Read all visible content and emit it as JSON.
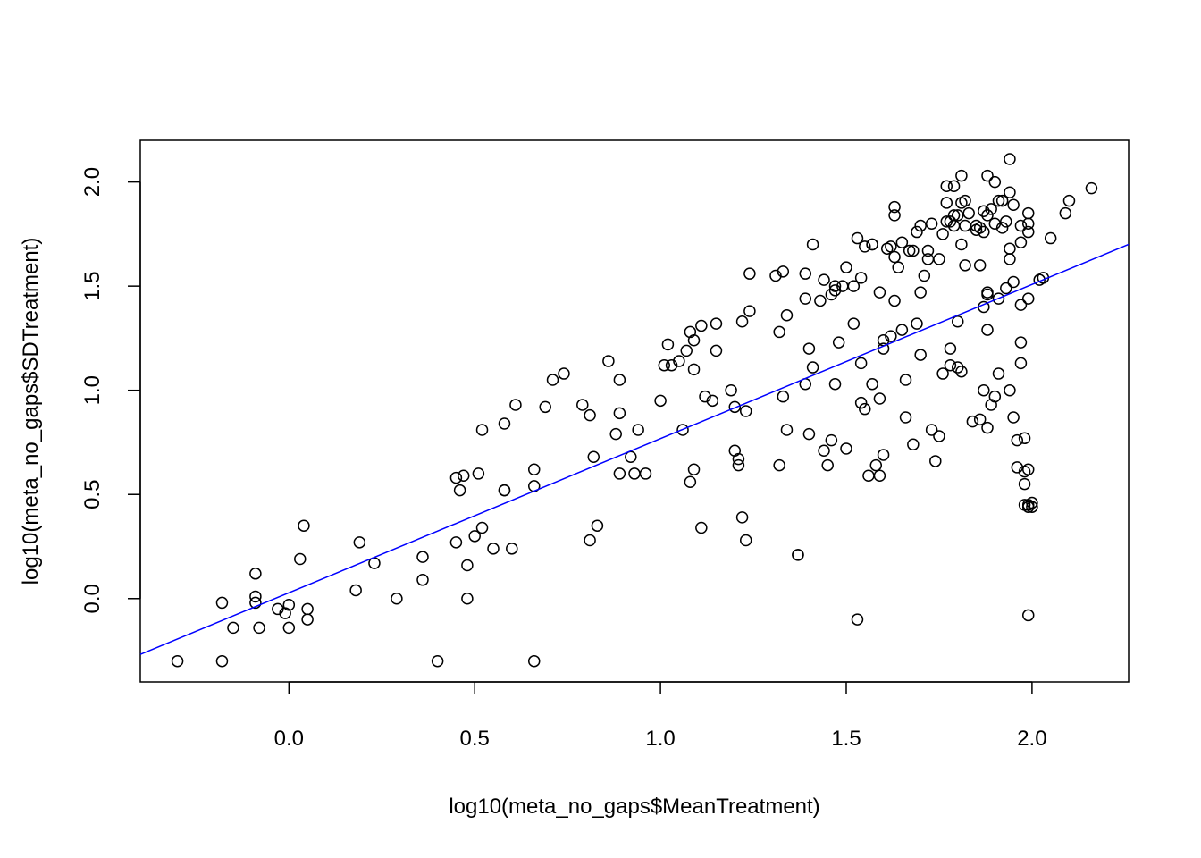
{
  "chart_data": {
    "type": "scatter",
    "title": "",
    "xlabel": "log10(meta_no_gaps$MeanTreatment)",
    "ylabel": "log10(meta_no_gaps$SDTreatment)",
    "xlim": [
      -0.4,
      2.26
    ],
    "ylim": [
      -0.4,
      2.2
    ],
    "xticks": [
      0.0,
      0.5,
      1.0,
      1.5,
      2.0
    ],
    "xtick_labels": [
      "0.0",
      "0.5",
      "1.0",
      "1.5",
      "2.0"
    ],
    "yticks": [
      0.0,
      0.5,
      1.0,
      1.5,
      2.0
    ],
    "ytick_labels": [
      "0.0",
      "0.5",
      "1.0",
      "1.5",
      "2.0"
    ],
    "grid": false,
    "legend": "none",
    "point_color": "#000000",
    "fit_line": {
      "color": "#0000ff",
      "intercept": 0.028,
      "slope": 0.74
    },
    "points": [
      [
        -0.3,
        -0.3
      ],
      [
        -0.18,
        -0.3
      ],
      [
        -0.18,
        -0.02
      ],
      [
        -0.15,
        -0.14
      ],
      [
        -0.09,
        0.12
      ],
      [
        -0.09,
        0.01
      ],
      [
        -0.09,
        -0.02
      ],
      [
        -0.08,
        -0.14
      ],
      [
        -0.03,
        -0.05
      ],
      [
        -0.01,
        -0.07
      ],
      [
        0.0,
        -0.03
      ],
      [
        0.0,
        -0.14
      ],
      [
        0.03,
        0.19
      ],
      [
        0.04,
        0.35
      ],
      [
        0.05,
        -0.05
      ],
      [
        0.05,
        -0.1
      ],
      [
        0.18,
        0.04
      ],
      [
        0.19,
        0.27
      ],
      [
        0.23,
        0.17
      ],
      [
        0.29,
        0.0
      ],
      [
        0.36,
        0.2
      ],
      [
        0.36,
        0.09
      ],
      [
        0.4,
        -0.3
      ],
      [
        0.45,
        0.27
      ],
      [
        0.45,
        0.58
      ],
      [
        0.46,
        0.52
      ],
      [
        0.47,
        0.59
      ],
      [
        0.48,
        0.16
      ],
      [
        0.48,
        0.0
      ],
      [
        0.5,
        0.3
      ],
      [
        0.51,
        0.6
      ],
      [
        0.52,
        0.34
      ],
      [
        0.52,
        0.81
      ],
      [
        0.55,
        0.24
      ],
      [
        0.58,
        0.52
      ],
      [
        0.58,
        0.52
      ],
      [
        0.58,
        0.84
      ],
      [
        0.6,
        0.24
      ],
      [
        0.61,
        0.93
      ],
      [
        0.66,
        0.54
      ],
      [
        0.66,
        0.62
      ],
      [
        0.66,
        -0.3
      ],
      [
        0.69,
        0.92
      ],
      [
        0.71,
        1.05
      ],
      [
        0.74,
        1.08
      ],
      [
        0.79,
        0.93
      ],
      [
        0.81,
        0.88
      ],
      [
        0.81,
        0.28
      ],
      [
        0.82,
        0.68
      ],
      [
        0.83,
        0.35
      ],
      [
        0.86,
        1.14
      ],
      [
        0.88,
        0.79
      ],
      [
        0.89,
        0.89
      ],
      [
        0.89,
        1.05
      ],
      [
        0.89,
        0.6
      ],
      [
        0.92,
        0.68
      ],
      [
        0.93,
        0.6
      ],
      [
        0.94,
        0.81
      ],
      [
        0.96,
        0.6
      ],
      [
        1.0,
        0.95
      ],
      [
        1.01,
        1.12
      ],
      [
        1.02,
        1.22
      ],
      [
        1.03,
        1.12
      ],
      [
        1.05,
        1.14
      ],
      [
        1.06,
        0.81
      ],
      [
        1.07,
        1.19
      ],
      [
        1.08,
        0.56
      ],
      [
        1.08,
        1.28
      ],
      [
        1.09,
        0.62
      ],
      [
        1.09,
        1.24
      ],
      [
        1.09,
        1.1
      ],
      [
        1.11,
        1.31
      ],
      [
        1.11,
        0.34
      ],
      [
        1.12,
        0.97
      ],
      [
        1.14,
        0.95
      ],
      [
        1.15,
        1.32
      ],
      [
        1.15,
        1.19
      ],
      [
        1.19,
        1.0
      ],
      [
        1.2,
        0.92
      ],
      [
        1.2,
        0.71
      ],
      [
        1.21,
        0.64
      ],
      [
        1.21,
        0.67
      ],
      [
        1.22,
        1.33
      ],
      [
        1.22,
        0.39
      ],
      [
        1.23,
        0.28
      ],
      [
        1.23,
        0.9
      ],
      [
        1.24,
        1.38
      ],
      [
        1.24,
        1.56
      ],
      [
        1.31,
        1.55
      ],
      [
        1.32,
        0.64
      ],
      [
        1.32,
        1.28
      ],
      [
        1.33,
        1.57
      ],
      [
        1.33,
        0.97
      ],
      [
        1.34,
        1.36
      ],
      [
        1.34,
        0.81
      ],
      [
        1.37,
        0.21
      ],
      [
        1.37,
        0.21
      ],
      [
        1.39,
        1.56
      ],
      [
        1.39,
        1.44
      ],
      [
        1.39,
        1.03
      ],
      [
        1.4,
        1.2
      ],
      [
        1.4,
        0.79
      ],
      [
        1.41,
        1.7
      ],
      [
        1.41,
        1.11
      ],
      [
        1.43,
        1.43
      ],
      [
        1.44,
        1.53
      ],
      [
        1.44,
        0.71
      ],
      [
        1.45,
        0.64
      ],
      [
        1.46,
        0.76
      ],
      [
        1.46,
        1.46
      ],
      [
        1.47,
        1.48
      ],
      [
        1.47,
        1.5
      ],
      [
        1.47,
        1.03
      ],
      [
        1.48,
        1.23
      ],
      [
        1.49,
        1.5
      ],
      [
        1.5,
        1.59
      ],
      [
        1.5,
        0.72
      ],
      [
        1.52,
        1.32
      ],
      [
        1.52,
        1.5
      ],
      [
        1.53,
        1.73
      ],
      [
        1.53,
        -0.1
      ],
      [
        1.54,
        1.13
      ],
      [
        1.54,
        0.94
      ],
      [
        1.54,
        1.54
      ],
      [
        1.55,
        1.69
      ],
      [
        1.55,
        0.91
      ],
      [
        1.56,
        0.59
      ],
      [
        1.57,
        1.7
      ],
      [
        1.57,
        1.03
      ],
      [
        1.57,
        1.7
      ],
      [
        1.58,
        0.64
      ],
      [
        1.59,
        0.96
      ],
      [
        1.59,
        1.47
      ],
      [
        1.59,
        0.59
      ],
      [
        1.6,
        1.24
      ],
      [
        1.6,
        1.2
      ],
      [
        1.6,
        0.69
      ],
      [
        1.61,
        1.68
      ],
      [
        1.62,
        1.26
      ],
      [
        1.62,
        1.69
      ],
      [
        1.63,
        1.43
      ],
      [
        1.63,
        1.64
      ],
      [
        1.63,
        1.84
      ],
      [
        1.63,
        1.88
      ],
      [
        1.64,
        1.59
      ],
      [
        1.65,
        1.71
      ],
      [
        1.65,
        1.29
      ],
      [
        1.66,
        1.05
      ],
      [
        1.66,
        0.87
      ],
      [
        1.67,
        1.67
      ],
      [
        1.68,
        1.67
      ],
      [
        1.68,
        0.74
      ],
      [
        1.69,
        1.32
      ],
      [
        1.69,
        1.76
      ],
      [
        1.7,
        1.17
      ],
      [
        1.7,
        1.47
      ],
      [
        1.7,
        1.79
      ],
      [
        1.71,
        1.55
      ],
      [
        1.72,
        1.67
      ],
      [
        1.72,
        1.63
      ],
      [
        1.73,
        1.8
      ],
      [
        1.73,
        0.81
      ],
      [
        1.74,
        0.66
      ],
      [
        1.75,
        0.78
      ],
      [
        1.75,
        1.63
      ],
      [
        1.76,
        1.75
      ],
      [
        1.76,
        1.08
      ],
      [
        1.77,
        1.9
      ],
      [
        1.77,
        1.81
      ],
      [
        1.77,
        1.98
      ],
      [
        1.78,
        1.2
      ],
      [
        1.78,
        1.81
      ],
      [
        1.78,
        1.12
      ],
      [
        1.79,
        1.84
      ],
      [
        1.79,
        1.79
      ],
      [
        1.79,
        1.98
      ],
      [
        1.8,
        1.33
      ],
      [
        1.8,
        1.11
      ],
      [
        1.8,
        1.84
      ],
      [
        1.81,
        1.9
      ],
      [
        1.81,
        2.03
      ],
      [
        1.81,
        1.7
      ],
      [
        1.81,
        1.09
      ],
      [
        1.82,
        1.91
      ],
      [
        1.82,
        1.6
      ],
      [
        1.82,
        1.79
      ],
      [
        1.83,
        1.85
      ],
      [
        1.84,
        0.85
      ],
      [
        1.85,
        1.77
      ],
      [
        1.85,
        1.79
      ],
      [
        1.86,
        0.86
      ],
      [
        1.86,
        1.6
      ],
      [
        1.86,
        1.78
      ],
      [
        1.87,
        1.4
      ],
      [
        1.87,
        1.0
      ],
      [
        1.87,
        1.76
      ],
      [
        1.87,
        1.86
      ],
      [
        1.88,
        1.84
      ],
      [
        1.88,
        1.46
      ],
      [
        1.88,
        2.03
      ],
      [
        1.88,
        1.29
      ],
      [
        1.88,
        0.82
      ],
      [
        1.88,
        1.47
      ],
      [
        1.89,
        0.93
      ],
      [
        1.89,
        1.87
      ],
      [
        1.9,
        2.0
      ],
      [
        1.9,
        0.97
      ],
      [
        1.9,
        1.8
      ],
      [
        1.91,
        1.08
      ],
      [
        1.91,
        1.91
      ],
      [
        1.91,
        1.44
      ],
      [
        1.92,
        1.91
      ],
      [
        1.92,
        1.78
      ],
      [
        1.93,
        1.81
      ],
      [
        1.93,
        1.49
      ],
      [
        1.94,
        1.68
      ],
      [
        1.94,
        1.63
      ],
      [
        1.94,
        1.0
      ],
      [
        1.94,
        2.11
      ],
      [
        1.94,
        1.95
      ],
      [
        1.95,
        0.87
      ],
      [
        1.95,
        1.52
      ],
      [
        1.95,
        1.89
      ],
      [
        1.96,
        0.76
      ],
      [
        1.96,
        0.63
      ],
      [
        1.97,
        1.79
      ],
      [
        1.97,
        1.71
      ],
      [
        1.97,
        1.41
      ],
      [
        1.97,
        1.23
      ],
      [
        1.97,
        1.13
      ],
      [
        1.98,
        0.55
      ],
      [
        1.98,
        0.77
      ],
      [
        1.98,
        0.61
      ],
      [
        1.98,
        0.45
      ],
      [
        1.99,
        0.45
      ],
      [
        1.99,
        0.44
      ],
      [
        1.99,
        1.44
      ],
      [
        1.99,
        1.76
      ],
      [
        1.99,
        1.8
      ],
      [
        1.99,
        1.85
      ],
      [
        1.99,
        0.62
      ],
      [
        1.99,
        -0.08
      ],
      [
        2.0,
        0.46
      ],
      [
        2.0,
        0.44
      ],
      [
        2.02,
        1.53
      ],
      [
        2.03,
        1.54
      ],
      [
        2.05,
        1.73
      ],
      [
        2.09,
        1.85
      ],
      [
        2.1,
        1.91
      ],
      [
        2.16,
        1.97
      ]
    ]
  }
}
